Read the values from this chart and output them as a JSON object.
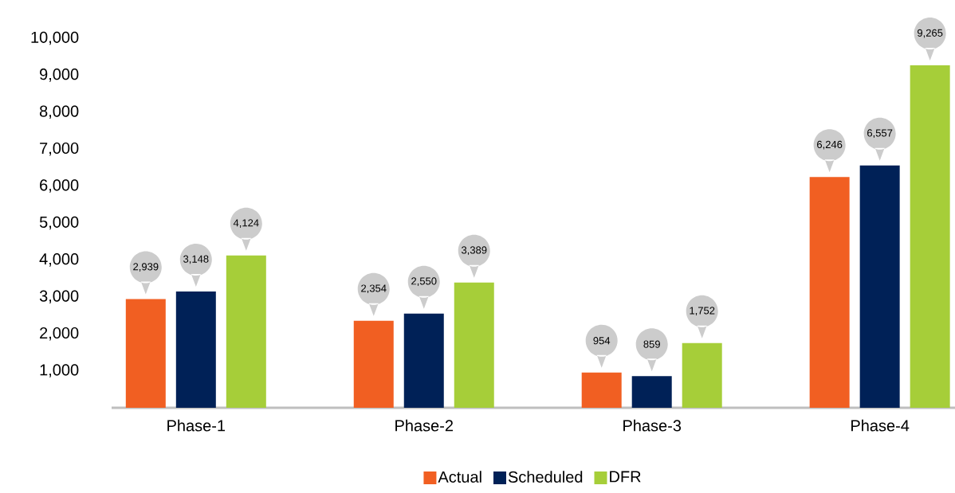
{
  "chart_data": {
    "type": "bar",
    "categories": [
      "Phase-1",
      "Phase-2",
      "Phase-3",
      "Phase-4"
    ],
    "series": [
      {
        "name": "Actual",
        "color": "#f15f22",
        "values": [
          2939,
          2354,
          954,
          6246
        ],
        "value_labels": [
          "2,939",
          "2,354",
          "954",
          "6,246"
        ]
      },
      {
        "name": "Scheduled",
        "color": "#002157",
        "values": [
          3148,
          2550,
          859,
          6557
        ],
        "value_labels": [
          "3,148",
          "2,550",
          "859",
          "6,557"
        ]
      },
      {
        "name": "DFR",
        "color": "#a6ce39",
        "values": [
          4124,
          3389,
          1752,
          9265
        ],
        "value_labels": [
          "4,124",
          "3,389",
          "1,752",
          "9,265"
        ]
      }
    ],
    "ylim": [
      0,
      10000
    ],
    "yticks": [
      {
        "value": 1000,
        "label": "1,000"
      },
      {
        "value": 2000,
        "label": "2,000"
      },
      {
        "value": 3000,
        "label": "3,000"
      },
      {
        "value": 4000,
        "label": "4,000"
      },
      {
        "value": 5000,
        "label": "5,000"
      },
      {
        "value": 6000,
        "label": "6,000"
      },
      {
        "value": 7000,
        "label": "7,000"
      },
      {
        "value": 8000,
        "label": "8,000"
      },
      {
        "value": 9000,
        "label": "9,000"
      },
      {
        "value": 10000,
        "label": "10,000"
      }
    ],
    "legend": "bottom"
  }
}
